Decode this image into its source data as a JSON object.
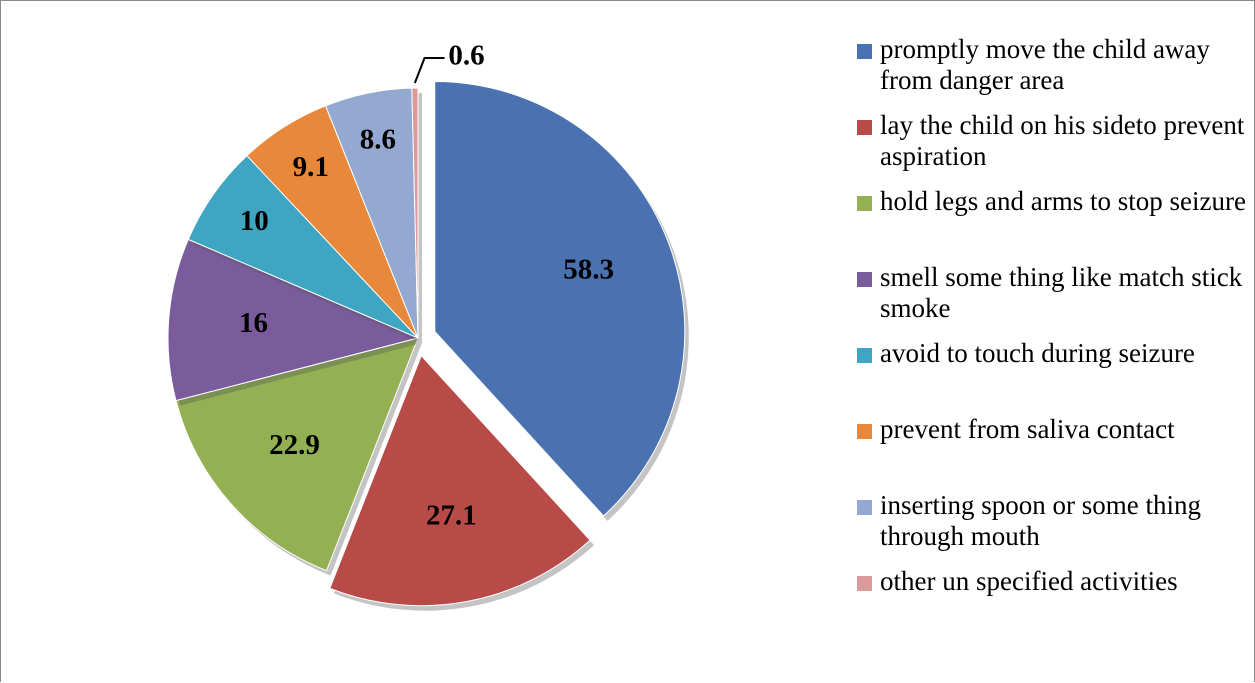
{
  "chart_data": {
    "type": "pie",
    "categories": [
      "promptly move the child away from danger area",
      "lay the child on his sideto prevent aspiration",
      "hold legs and arms to stop seizure",
      "smell some thing like match stick smoke",
      "avoid to touch during seizure",
      "prevent from saliva contact",
      "inserting spoon or some thing through mouth",
      "other un specified activities"
    ],
    "values": [
      58.3,
      27.1,
      22.9,
      16,
      10,
      9.1,
      8.6,
      0.6
    ],
    "colors": [
      "#4a72b0",
      "#b84b48",
      "#93b052",
      "#7a5c9c",
      "#3ea5c2",
      "#e8883a",
      "#93a9d2",
      "#d99a99"
    ],
    "exploded": [
      true,
      true,
      false,
      false,
      false,
      false,
      false,
      false
    ],
    "legend": "right"
  }
}
